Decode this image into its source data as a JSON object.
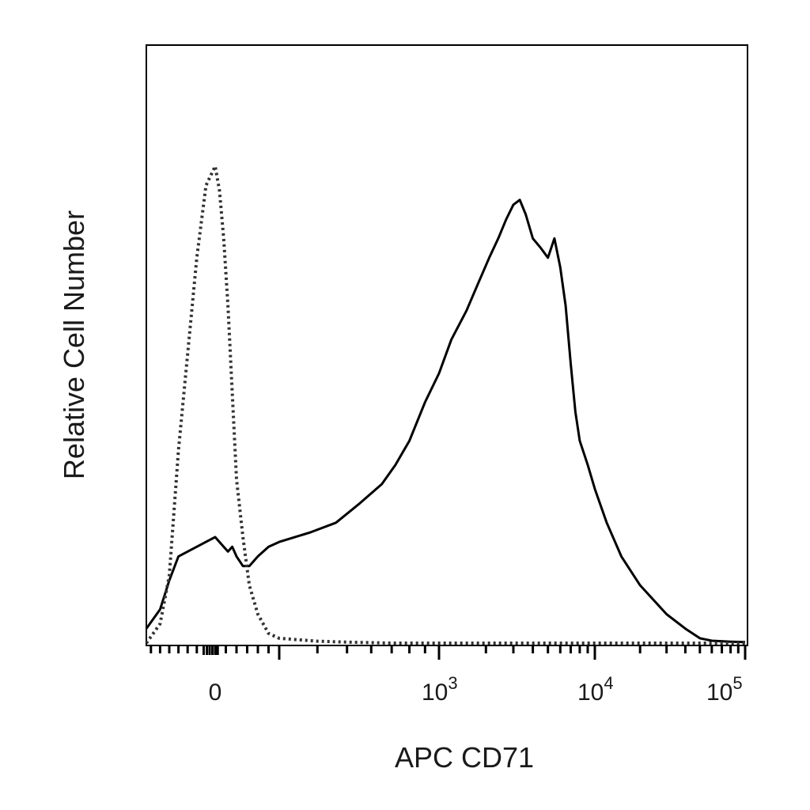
{
  "chart_data": {
    "type": "line",
    "title": "",
    "xlabel": "APC CD71",
    "ylabel": "Relative Cell Number",
    "x_scale": "biexponential",
    "xlim": [
      -150,
      100000
    ],
    "ylim": [
      0,
      100
    ],
    "grid": false,
    "x_tick_labels": [
      {
        "value": 0,
        "base": "0",
        "exp": ""
      },
      {
        "value": 1000,
        "base": "10",
        "exp": "3"
      },
      {
        "value": 10000,
        "base": "10",
        "exp": "4"
      },
      {
        "value": 100000,
        "base": "10",
        "exp": "5"
      }
    ],
    "series": [
      {
        "style": "solid",
        "color": "#000000",
        "x": [
          -150,
          -120,
          -100,
          -80,
          -60,
          -40,
          -20,
          0,
          20,
          40,
          60,
          80,
          100,
          130,
          160,
          200,
          250,
          300,
          380,
          460,
          550,
          650,
          720,
          800,
          900,
          1000,
          1200,
          1500,
          1800,
          2100,
          2400,
          2700,
          3000,
          3300,
          3600,
          4000,
          4500,
          5000,
          5500,
          6000,
          6500,
          7000,
          7500,
          8000,
          9000,
          10000,
          12000,
          15000,
          20000,
          30000,
          40000,
          50000,
          60000,
          80000,
          100000
        ],
        "y": [
          3,
          7,
          13,
          18,
          19,
          20,
          21,
          22,
          21,
          20,
          19,
          20,
          18,
          16,
          16,
          18,
          20,
          21,
          23,
          25,
          29,
          33,
          37,
          42,
          50,
          56,
          63,
          69,
          75,
          80,
          84,
          88,
          91,
          92,
          89,
          84,
          82,
          80,
          84,
          78,
          70,
          58,
          48,
          42,
          37,
          32,
          25,
          18,
          12,
          6,
          3,
          1,
          0.5,
          0.3,
          0.2
        ]
      },
      {
        "style": "dotted",
        "color": "#333333",
        "x": [
          -150,
          -120,
          -100,
          -80,
          -60,
          -40,
          -20,
          0,
          20,
          40,
          60,
          80,
          100,
          130,
          160,
          200,
          250,
          300,
          400,
          500,
          700,
          1000,
          2000,
          5000,
          10000,
          100000
        ],
        "y": [
          0,
          4,
          14,
          40,
          60,
          80,
          95,
          99,
          94,
          84,
          70,
          52,
          34,
          22,
          12,
          6,
          2,
          1,
          0.4,
          0.2,
          0,
          0,
          0,
          0,
          0,
          0
        ]
      }
    ]
  }
}
